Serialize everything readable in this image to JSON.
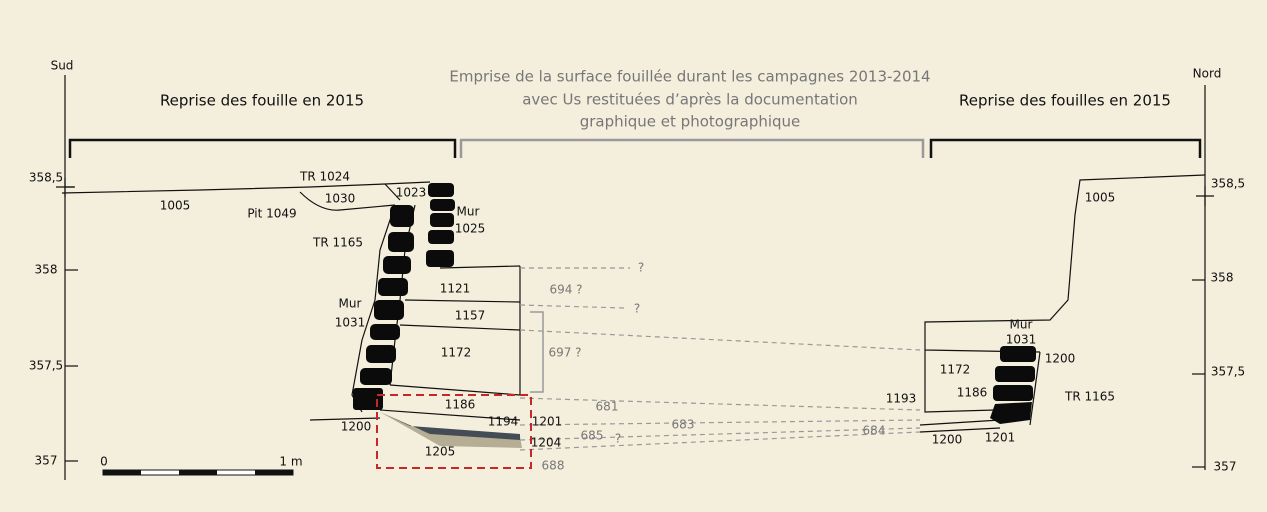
{
  "labels": {
    "south": "Sud",
    "north": "Nord"
  },
  "headers": {
    "left": "Reprise des fouille en 2015",
    "center": [
      "Emprise de la surface fouillée durant les campagnes 2013-2014",
      "avec Us restituées d’après la documentation",
      "graphique et photographique"
    ],
    "right": "Reprise des fouilles en 2015"
  },
  "left_scale": [
    "358,5",
    "358",
    "357,5",
    "357"
  ],
  "right_scale": [
    "358,5",
    "358",
    "357,5",
    "357"
  ],
  "scale_bar": [
    "0",
    "1 m"
  ],
  "annotations": [
    "TR 1024",
    "1023",
    "1030",
    "1005",
    "Pit 1049",
    "Mur",
    "1025",
    "TR 1165",
    "1121",
    "694 ?",
    "?",
    "?",
    "Mur",
    "1031",
    "1157",
    "1172",
    "697 ?",
    "1186",
    "681",
    "1194",
    "1201",
    "683",
    "1200",
    "685",
    "?",
    "1204",
    "684",
    "1205",
    "688",
    "1005",
    "Mur",
    "1031",
    "1200",
    "1172",
    "1186",
    "1193",
    "TR 1165",
    "1200",
    "1201"
  ]
}
